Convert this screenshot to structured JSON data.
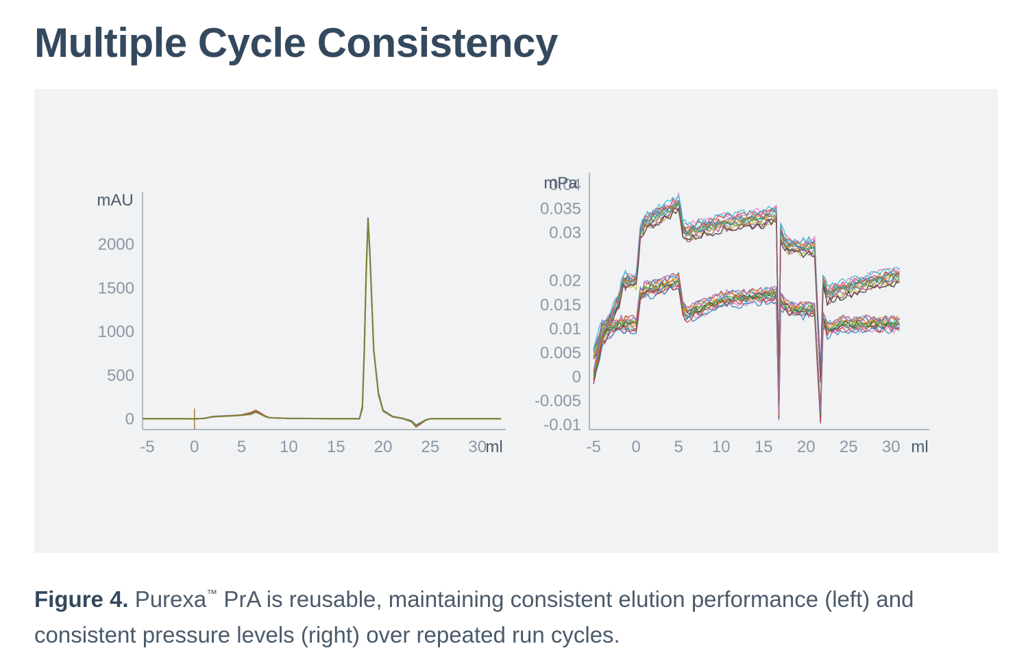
{
  "title": "Multiple Cycle Consistency",
  "caption": {
    "figure_label": "Figure 4.",
    "text_before_tm": "Purexa",
    "tm": "™",
    "text_after_tm": " PrA is reusable, maintaining consistent elution performance (left) and consistent pressure levels (right) over repeated run cycles."
  },
  "colors": {
    "title": "#34495e",
    "panel_bg": "#f1f2f3",
    "axis": "#9aa5b1",
    "tick_text": "#8a97a6"
  },
  "chart_data": [
    {
      "type": "line",
      "side": "left",
      "ylabel": "mAU",
      "xlabel": "ml",
      "xlim": [
        -5.5,
        33
      ],
      "ylim": [
        -120,
        2600
      ],
      "x_ticks": [
        -5,
        0,
        5,
        10,
        15,
        20,
        25,
        30
      ],
      "y_ticks": [
        0,
        500,
        1000,
        1500,
        2000
      ],
      "injection_marker_x": 0,
      "series": [
        {
          "color": "#2f6f7a",
          "x": [
            -5.5,
            -2,
            0,
            1,
            2,
            4,
            5,
            6,
            6.5,
            7,
            7.5,
            8,
            10,
            15,
            17.5,
            17.8,
            18,
            18.2,
            18.4,
            18.6,
            19,
            19.5,
            20,
            21,
            22,
            23,
            23.5,
            24,
            24.5,
            25,
            28,
            32.5
          ],
          "values": [
            5,
            5,
            3,
            8,
            30,
            40,
            45,
            60,
            85,
            60,
            30,
            15,
            8,
            5,
            5,
            150,
            800,
            1700,
            2300,
            1900,
            800,
            300,
            100,
            30,
            10,
            -20,
            -70,
            -40,
            -10,
            5,
            5,
            5
          ]
        },
        {
          "color": "#c0503a",
          "x": [
            -5.5,
            -2,
            0,
            1,
            2,
            4,
            5,
            6,
            6.5,
            7,
            7.5,
            8,
            10,
            15,
            17.5,
            17.8,
            18,
            18.2,
            18.4,
            18.6,
            19,
            19.5,
            20,
            21,
            22,
            23,
            23.5,
            24,
            24.5,
            25,
            28,
            32.5
          ],
          "values": [
            3,
            3,
            2,
            6,
            28,
            38,
            48,
            75,
            100,
            70,
            35,
            15,
            7,
            4,
            4,
            120,
            750,
            1650,
            2280,
            1880,
            780,
            280,
            90,
            25,
            8,
            -30,
            -90,
            -55,
            -15,
            4,
            4,
            4
          ]
        },
        {
          "color": "#7a8a3a",
          "x": [
            -5.5,
            -2,
            0,
            1,
            2,
            4,
            5,
            6,
            6.5,
            7,
            7.5,
            8,
            10,
            15,
            17.5,
            17.8,
            18,
            18.2,
            18.4,
            18.6,
            19,
            19.5,
            20,
            21,
            22,
            23,
            23.5,
            24,
            24.5,
            25,
            28,
            32.5
          ],
          "values": [
            4,
            4,
            2,
            7,
            25,
            36,
            42,
            55,
            78,
            55,
            28,
            14,
            7,
            4,
            4,
            140,
            780,
            1680,
            2260,
            1860,
            790,
            290,
            95,
            28,
            9,
            -25,
            -80,
            -45,
            -12,
            4,
            4,
            4
          ]
        }
      ]
    },
    {
      "type": "line",
      "side": "right",
      "ylabel": "mPa",
      "xlabel": "ml",
      "xlim": [
        -5.5,
        34.5
      ],
      "ylim": [
        -0.011,
        0.0425
      ],
      "x_ticks": [
        -5,
        0,
        5,
        10,
        15,
        20,
        25,
        30
      ],
      "y_ticks": [
        0.04,
        0.035,
        0.03,
        0.02,
        0.015,
        0.01,
        0.005,
        0,
        -0.005,
        -0.01
      ],
      "y_tick_labels": [
        "0.04",
        "0.035",
        "0.03",
        "0.02",
        "0.015",
        "0.01",
        "0.005",
        "0",
        "-0.005",
        "-0.01"
      ],
      "bands": [
        {
          "name": "",
          "x": [
            -5,
            -4,
            -3,
            -2,
            -1.5,
            -1,
            0,
            0.5,
            1,
            5,
            5.5,
            6,
            10,
            15,
            16.5,
            16.8,
            17,
            17.5,
            18,
            21,
            21.7,
            22,
            22.5,
            24,
            26,
            28,
            31
          ],
          "values": [
            0.005,
            0.01,
            0.012,
            0.016,
            0.02,
            0.02,
            0.02,
            0.03,
            0.032,
            0.036,
            0.031,
            0.03,
            0.032,
            0.033,
            0.034,
            0.0,
            0.03,
            0.028,
            0.027,
            0.027,
            0.0,
            0.02,
            0.017,
            0.018,
            0.019,
            0.02,
            0.021
          ]
        },
        {
          "name": "",
          "x": [
            -5,
            -4,
            -3,
            -2,
            -1.5,
            -1,
            0,
            0.5,
            1,
            5,
            5.5,
            6,
            10,
            15,
            16.5,
            16.8,
            17,
            17.5,
            18,
            21,
            21.7,
            22,
            22.5,
            24,
            26,
            28,
            31
          ],
          "values": [
            0.0,
            0.008,
            0.01,
            0.011,
            0.011,
            0.011,
            0.011,
            0.017,
            0.018,
            0.02,
            0.014,
            0.013,
            0.016,
            0.017,
            0.017,
            -0.008,
            0.016,
            0.015,
            0.014,
            0.014,
            -0.008,
            0.012,
            0.01,
            0.011,
            0.011,
            0.011,
            0.011
          ]
        }
      ]
    }
  ]
}
